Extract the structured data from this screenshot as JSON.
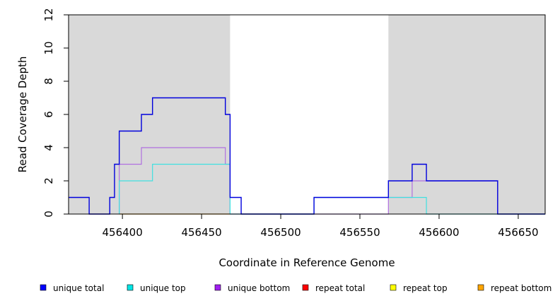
{
  "chart_data": {
    "type": "line",
    "title": "",
    "xlabel": "Coordinate in Reference Genome",
    "ylabel": "Read Coverage Depth",
    "xlim": [
      456366,
      456667
    ],
    "ylim": [
      0,
      12
    ],
    "x_ticks": [
      456400,
      456450,
      456500,
      456550,
      456600,
      456650
    ],
    "x_tick_labels": [
      "456400",
      "456450",
      "456500",
      "456550",
      "456600",
      "456650"
    ],
    "y_ticks": [
      0,
      2,
      4,
      6,
      8,
      10,
      12
    ],
    "y_tick_labels": [
      "0",
      "2",
      "4",
      "6",
      "8",
      "10",
      "12"
    ],
    "grid": false,
    "legend_position": "bottom",
    "shaded_regions": [
      {
        "x0": 456366,
        "x1": 456468,
        "color": "#d9d9d9"
      },
      {
        "x0": 456568,
        "x1": 456667,
        "color": "#d9d9d9"
      }
    ],
    "series": [
      {
        "name": "unique total",
        "color": "#0000dd",
        "legend_color": "#0000ff",
        "points": [
          [
            456366,
            1
          ],
          [
            456379,
            1
          ],
          [
            456379,
            0
          ],
          [
            456392,
            0
          ],
          [
            456392,
            1
          ],
          [
            456395,
            1
          ],
          [
            456395,
            3
          ],
          [
            456398,
            3
          ],
          [
            456398,
            5
          ],
          [
            456412,
            5
          ],
          [
            456412,
            6
          ],
          [
            456419,
            6
          ],
          [
            456419,
            7
          ],
          [
            456465,
            7
          ],
          [
            456465,
            6
          ],
          [
            456468,
            6
          ],
          [
            456468,
            1
          ],
          [
            456475,
            1
          ],
          [
            456475,
            0
          ],
          [
            456521,
            0
          ],
          [
            456521,
            1
          ],
          [
            456568,
            1
          ],
          [
            456568,
            2
          ],
          [
            456583,
            2
          ],
          [
            456583,
            3
          ],
          [
            456592,
            3
          ],
          [
            456592,
            2
          ],
          [
            456637,
            2
          ],
          [
            456637,
            0
          ],
          [
            456667,
            0
          ]
        ]
      },
      {
        "name": "unique top",
        "color": "#40e0e0",
        "legend_color": "#00e5e5",
        "points": [
          [
            456398,
            0
          ],
          [
            456398,
            2
          ],
          [
            456419,
            2
          ],
          [
            456419,
            3
          ],
          [
            456468,
            3
          ],
          [
            456468,
            0
          ],
          [
            456521,
            0
          ],
          [
            456521,
            1
          ],
          [
            456592,
            1
          ],
          [
            456592,
            0
          ],
          [
            456667,
            0
          ]
        ]
      },
      {
        "name": "unique bottom",
        "color": "#b070e0",
        "legend_color": "#a020f0",
        "points": [
          [
            456398,
            0
          ],
          [
            456398,
            3
          ],
          [
            456412,
            3
          ],
          [
            456412,
            4
          ],
          [
            456465,
            4
          ],
          [
            456465,
            3
          ],
          [
            456468,
            3
          ],
          [
            456468,
            0
          ],
          [
            456568,
            0
          ],
          [
            456568,
            1
          ],
          [
            456583,
            1
          ],
          [
            456583,
            2
          ],
          [
            456637,
            2
          ],
          [
            456637,
            0
          ]
        ]
      },
      {
        "name": "repeat total",
        "color": "#ff0000",
        "legend_color": "#ff0000",
        "points": []
      },
      {
        "name": "repeat top",
        "color": "#ffff00",
        "legend_color": "#ffff00",
        "points": []
      },
      {
        "name": "repeat bottom",
        "color": "#ffa500",
        "legend_color": "#ffa500",
        "points": [
          [
            456398,
            0
          ],
          [
            456468,
            0
          ]
        ]
      }
    ]
  }
}
